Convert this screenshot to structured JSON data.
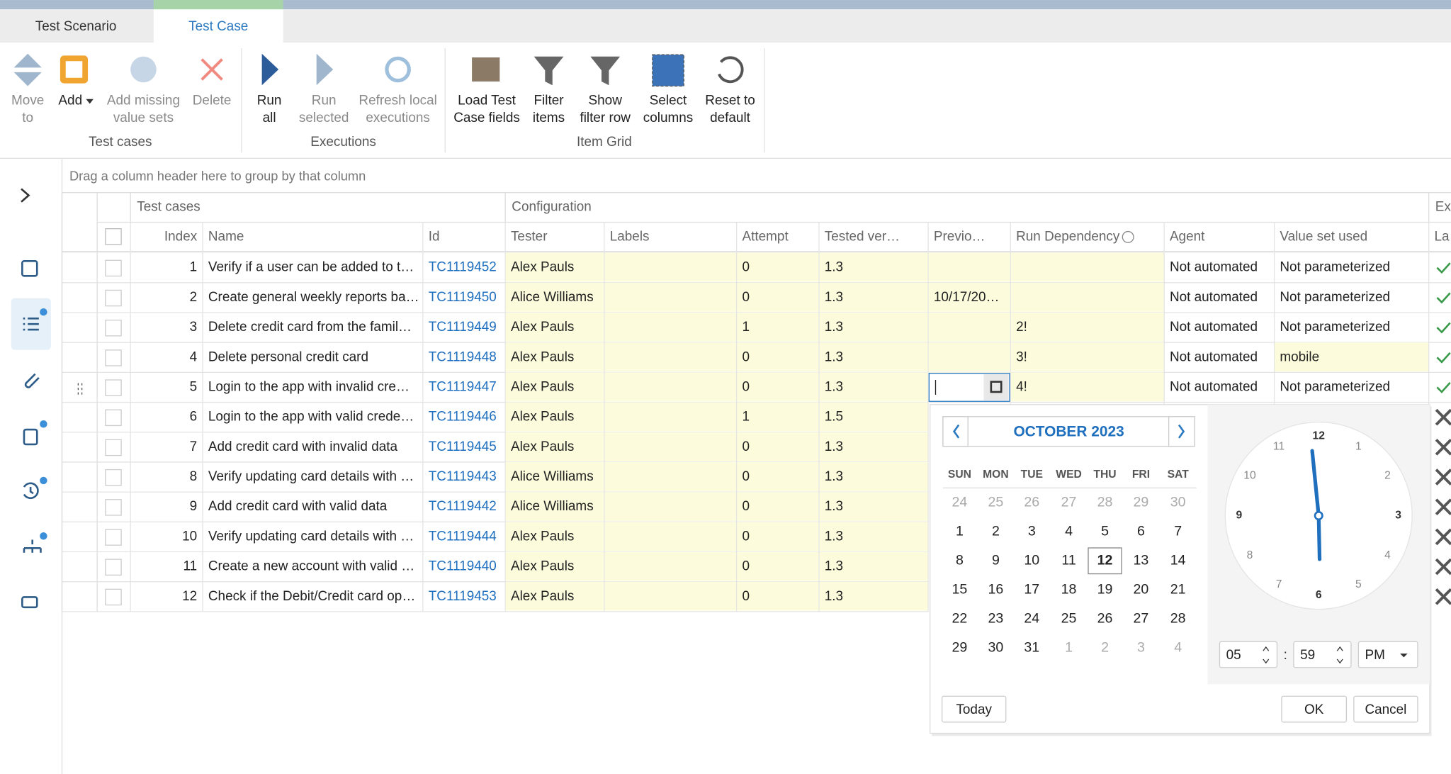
{
  "tabs": [
    "Test Scenario",
    "Test Case"
  ],
  "toolbar": {
    "groups": [
      {
        "label": "Test cases",
        "buttons": [
          {
            "lines": [
              "Move",
              "to"
            ]
          },
          {
            "lines": [
              "Add"
            ]
          },
          {
            "lines": [
              "Add missing",
              "value sets"
            ]
          },
          {
            "lines": [
              "Delete"
            ]
          }
        ]
      },
      {
        "label": "Executions",
        "buttons": [
          {
            "lines": [
              "Run",
              "all"
            ]
          },
          {
            "lines": [
              "Run",
              "selected"
            ]
          },
          {
            "lines": [
              "Refresh local",
              "executions"
            ]
          }
        ]
      },
      {
        "label": "Item Grid",
        "buttons": [
          {
            "lines": [
              "Load Test",
              "Case fields"
            ]
          },
          {
            "lines": [
              "Filter",
              "items"
            ]
          },
          {
            "lines": [
              "Show",
              "filter row"
            ]
          },
          {
            "lines": [
              "Select",
              "columns"
            ]
          },
          {
            "lines": [
              "Reset to",
              "default"
            ]
          }
        ]
      }
    ]
  },
  "grid": {
    "group_hint": "Drag a column header here to group by that column",
    "bands": [
      "Test cases",
      "Configuration",
      "Ex"
    ],
    "columns": [
      "Index",
      "Name",
      "Id",
      "Tester",
      "Labels",
      "Attempt",
      "Tested ver…",
      "Previo…",
      "Run Dependency",
      "Agent",
      "Value set used",
      "La"
    ],
    "rows": [
      [
        1,
        "Verify if a user can be added to t…",
        "TC1119452",
        "Alex Pauls",
        null,
        0,
        1.3,
        null,
        null,
        "Not automated",
        "Not parameterized"
      ],
      [
        2,
        "Create general weekly reports ba…",
        "TC1119450",
        "Alice Williams",
        null,
        0,
        1.3,
        "10/17/20…",
        null,
        "Not automated",
        "Not parameterized"
      ],
      [
        3,
        "Delete credit card from the famil…",
        "TC1119449",
        "Alex Pauls",
        null,
        1,
        1.3,
        null,
        "2!",
        "Not automated",
        "Not parameterized"
      ],
      [
        4,
        "Delete personal credit card",
        "TC1119448",
        "Alex Pauls",
        null,
        0,
        1.3,
        null,
        "3!",
        "Not automated",
        "mobile"
      ],
      [
        5,
        "Login to the app with invalid cre…",
        "TC1119447",
        "Alex Pauls",
        null,
        0,
        1.3,
        null,
        "4!",
        "Not automated",
        "Not parameterized"
      ],
      [
        6,
        "Login to the app with valid crede…",
        "TC1119446",
        "Alex Pauls",
        null,
        1,
        1.5
      ],
      [
        7,
        "Add credit card with invalid data",
        "TC1119445",
        "Alex Pauls",
        null,
        0,
        1.3
      ],
      [
        8,
        "Verify updating card details with …",
        "TC1119443",
        "Alice Williams",
        null,
        0,
        1.3
      ],
      [
        9,
        "Add credit card with valid data",
        "TC1119442",
        "Alice Williams",
        null,
        0,
        1.3
      ],
      [
        10,
        "Verify updating card details with …",
        "TC1119444",
        "Alex Pauls",
        null,
        0,
        1.3
      ],
      [
        11,
        "Create a new account with valid …",
        "TC1119440",
        "Alex Pauls",
        null,
        0,
        1.3
      ],
      [
        12,
        "Check if the Debit/Credit card op…",
        "TC1119453",
        "Alex Pauls",
        null,
        0,
        1.3
      ]
    ]
  },
  "date_picker": {
    "month": "OCTOBER 2023",
    "weekdays": [
      "SUN",
      "MON",
      "TUE",
      "WED",
      "THU",
      "FRI",
      "SAT"
    ],
    "days": [
      24,
      25,
      26,
      27,
      28,
      29,
      30,
      1,
      2,
      3,
      4,
      5,
      6,
      7,
      8,
      9,
      10,
      11,
      12,
      13,
      14,
      15,
      16,
      17,
      18,
      19,
      20,
      21,
      22,
      23,
      24,
      25,
      26,
      27,
      28,
      29,
      30,
      31,
      1,
      2,
      3,
      4
    ],
    "clock": [
      12,
      1,
      2,
      3,
      4,
      5,
      6,
      7,
      8,
      9,
      10,
      11
    ],
    "hour": "05",
    "minute": "59",
    "meridiem": "PM",
    "buttons": [
      "Today",
      "OK",
      "Cancel"
    ]
  }
}
